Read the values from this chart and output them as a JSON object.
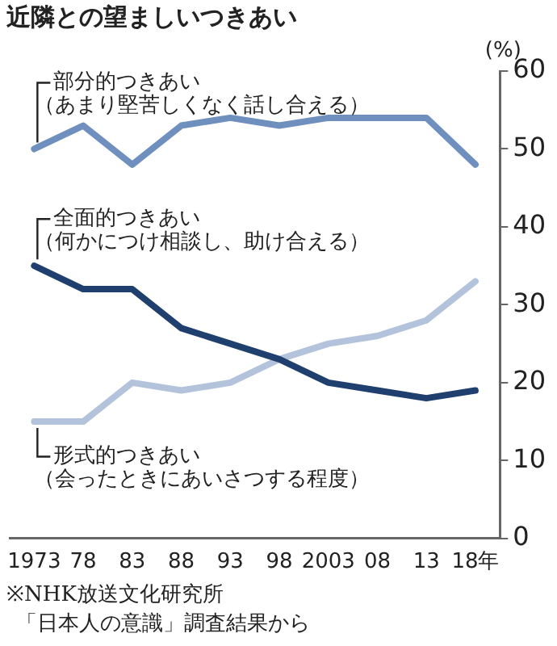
{
  "chart_data": {
    "type": "line",
    "title": "近隣との望ましいつきあい",
    "ylabel": "(%)",
    "categories": [
      "1973",
      "78",
      "83",
      "88",
      "93",
      "98",
      "2003",
      "08",
      "13",
      "18年"
    ],
    "series": [
      {
        "name": "部分的つきあい（あまり堅苦しくなく話し合える）",
        "color": "#6f8fbf",
        "values": [
          50,
          53,
          48,
          53,
          54,
          53,
          54,
          54,
          54,
          48
        ]
      },
      {
        "name": "全面的つきあい（何かにつけ相談し、助け合える）",
        "color": "#1f3f6e",
        "values": [
          35,
          32,
          32,
          27,
          25,
          23,
          20,
          19,
          18,
          19
        ]
      },
      {
        "name": "形式的つきあい（会ったときにあいさつする程度）",
        "color": "#b4c3dc",
        "values": [
          15,
          15,
          20,
          19,
          20,
          23,
          25,
          26,
          28,
          33
        ]
      }
    ],
    "ylim": [
      0,
      60
    ],
    "yticks": [
      0,
      10,
      20,
      30,
      40,
      50,
      60
    ],
    "grid": false,
    "legend": false,
    "marker": "none",
    "line_style": "solid",
    "annotations": [
      "※NHK放送文化研究所",
      "「日本人の意識」調査結果から"
    ]
  }
}
